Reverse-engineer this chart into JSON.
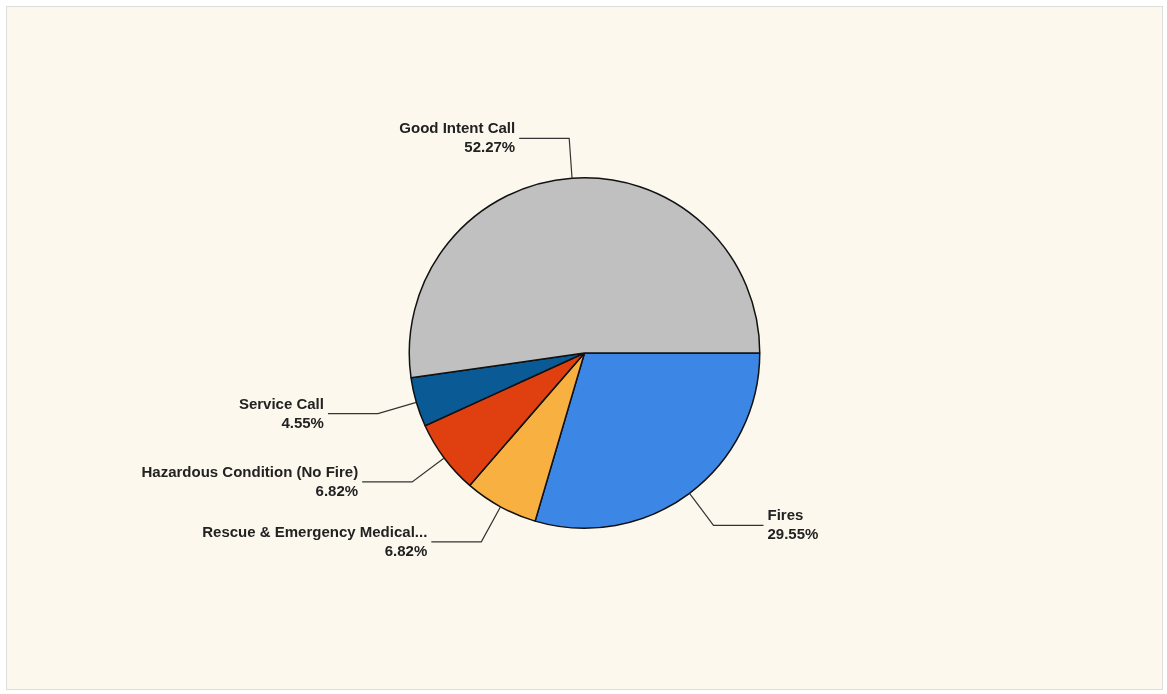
{
  "chart_data": {
    "type": "pie",
    "categories": [
      "Fires",
      "Rescue & Emergency Medical...",
      "Hazardous Condition (No Fire)",
      "Service Call",
      "Good Intent Call"
    ],
    "values": [
      29.55,
      6.82,
      6.82,
      4.55,
      52.27
    ],
    "value_labels": [
      "29.55%",
      "6.82%",
      "6.82%",
      "4.55%",
      "52.27%"
    ],
    "colors": [
      "#3c87e6",
      "#f8b040",
      "#e04010",
      "#0a5a96",
      "#c0c0c0"
    ],
    "legend": false
  }
}
